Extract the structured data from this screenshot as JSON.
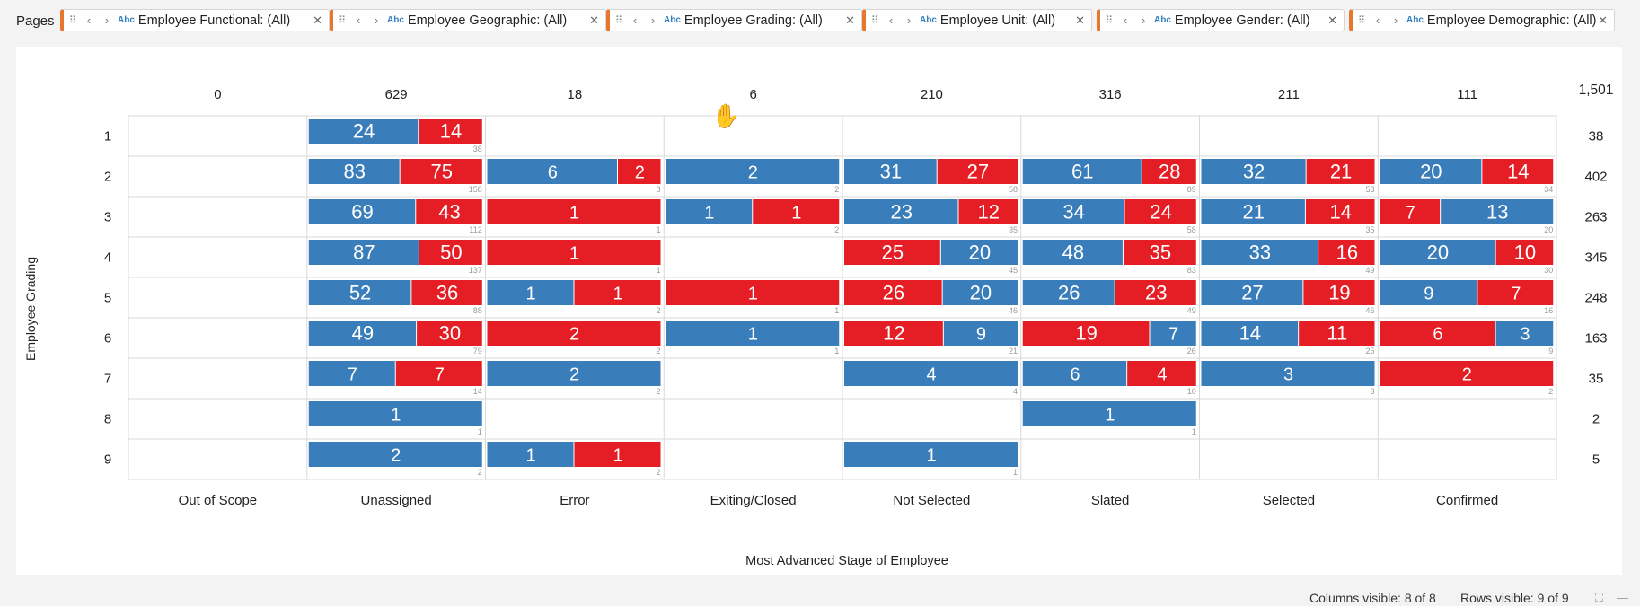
{
  "pages": {
    "label": "Pages",
    "filters": [
      {
        "text": "Employee Functional: (All)",
        "type_badge": "Abc"
      },
      {
        "text": "Employee Geographic: (All)",
        "type_badge": "Abc"
      },
      {
        "text": "Employee Grading: (All)",
        "type_badge": "Abc"
      },
      {
        "text": "Employee Unit: (All)",
        "type_badge": "Abc"
      },
      {
        "text": "Employee Gender: (All)",
        "type_badge": "Abc"
      },
      {
        "text": "Employee Demographic: (All)",
        "type_badge": "Abc"
      }
    ]
  },
  "status": {
    "columns_visible": "Columns visible: 8 of 8",
    "rows_visible": "Rows visible: 9 of 9"
  },
  "colors": {
    "blue": "#3a7dbb",
    "red": "#e51e25",
    "grid": "#d9d9d9"
  },
  "chart_data": {
    "type": "bar",
    "subtype": "small-multiple stacked horizontal bars (crosstab)",
    "xlabel": "Most Advanced Stage of Employee",
    "ylabel": "Employee Grading",
    "columns": [
      "Out of Scope",
      "Unassigned",
      "Error",
      "Exiting/Closed",
      "Not Selected",
      "Slated",
      "Selected",
      "Confirmed"
    ],
    "rows": [
      "1",
      "2",
      "3",
      "4",
      "5",
      "6",
      "7",
      "8",
      "9"
    ],
    "column_totals": [
      "0",
      "629",
      "18",
      "6",
      "210",
      "316",
      "211",
      "111"
    ],
    "row_totals": [
      "38",
      "402",
      "263",
      "345",
      "248",
      "163",
      "35",
      "2",
      "5"
    ],
    "grand_total": "1,501",
    "series": [
      {
        "name": "blue",
        "color": "#3a7dbb"
      },
      {
        "name": "red",
        "color": "#e51e25"
      }
    ],
    "cells": [
      [
        null,
        [
          24,
          14,
          38
        ],
        null,
        null,
        null,
        null,
        null,
        null
      ],
      [
        null,
        [
          83,
          75,
          158
        ],
        [
          6,
          2,
          8
        ],
        [
          2,
          0,
          2
        ],
        [
          31,
          27,
          58
        ],
        [
          61,
          28,
          89
        ],
        [
          32,
          21,
          53
        ],
        [
          20,
          14,
          34
        ]
      ],
      [
        null,
        [
          69,
          43,
          112
        ],
        [
          0,
          1,
          1
        ],
        [
          1,
          1,
          2
        ],
        [
          23,
          12,
          35
        ],
        [
          34,
          24,
          58
        ],
        [
          21,
          14,
          35
        ],
        [
          13,
          7,
          20
        ]
      ],
      [
        null,
        [
          87,
          50,
          137
        ],
        [
          0,
          1,
          1
        ],
        null,
        [
          20,
          25,
          45
        ],
        [
          48,
          35,
          83
        ],
        [
          33,
          16,
          49
        ],
        [
          20,
          10,
          30
        ]
      ],
      [
        null,
        [
          52,
          36,
          88
        ],
        [
          1,
          1,
          2
        ],
        [
          0,
          1,
          1
        ],
        [
          20,
          26,
          46
        ],
        [
          26,
          23,
          49
        ],
        [
          27,
          19,
          46
        ],
        [
          9,
          7,
          16
        ]
      ],
      [
        null,
        [
          49,
          30,
          79
        ],
        [
          0,
          2,
          2
        ],
        [
          1,
          0,
          1
        ],
        [
          9,
          12,
          21
        ],
        [
          7,
          19,
          26
        ],
        [
          14,
          11,
          25
        ],
        [
          3,
          6,
          9
        ]
      ],
      [
        null,
        [
          7,
          7,
          14
        ],
        [
          2,
          0,
          2
        ],
        null,
        [
          4,
          0,
          4
        ],
        [
          6,
          4,
          10
        ],
        [
          3,
          0,
          3
        ],
        [
          0,
          2,
          2
        ]
      ],
      [
        null,
        [
          1,
          0,
          1
        ],
        null,
        null,
        null,
        [
          1,
          0,
          1
        ],
        null,
        null
      ],
      [
        null,
        [
          2,
          0,
          2
        ],
        [
          1,
          1,
          2
        ],
        null,
        [
          1,
          0,
          1
        ],
        null,
        null,
        null
      ]
    ],
    "bar_order": [
      [
        null,
        "br",
        null,
        null,
        null,
        null,
        null,
        null
      ],
      [
        null,
        "br",
        "br",
        "br",
        "br",
        "br",
        "br",
        "br"
      ],
      [
        null,
        "br",
        "br",
        "br",
        "br",
        "br",
        "br",
        "rb"
      ],
      [
        null,
        "br",
        "br",
        null,
        "rb",
        "br",
        "br",
        "br"
      ],
      [
        null,
        "br",
        "br",
        "br",
        "rb",
        "br",
        "br",
        "br"
      ],
      [
        null,
        "br",
        "br",
        "br",
        "rb",
        "rb",
        "br",
        "rb"
      ],
      [
        null,
        "br",
        "br",
        null,
        "br",
        "br",
        "br",
        "br"
      ],
      [
        null,
        "br",
        null,
        null,
        null,
        "br",
        null,
        null
      ],
      [
        null,
        "br",
        "br",
        null,
        "br",
        null,
        null,
        null
      ]
    ]
  }
}
